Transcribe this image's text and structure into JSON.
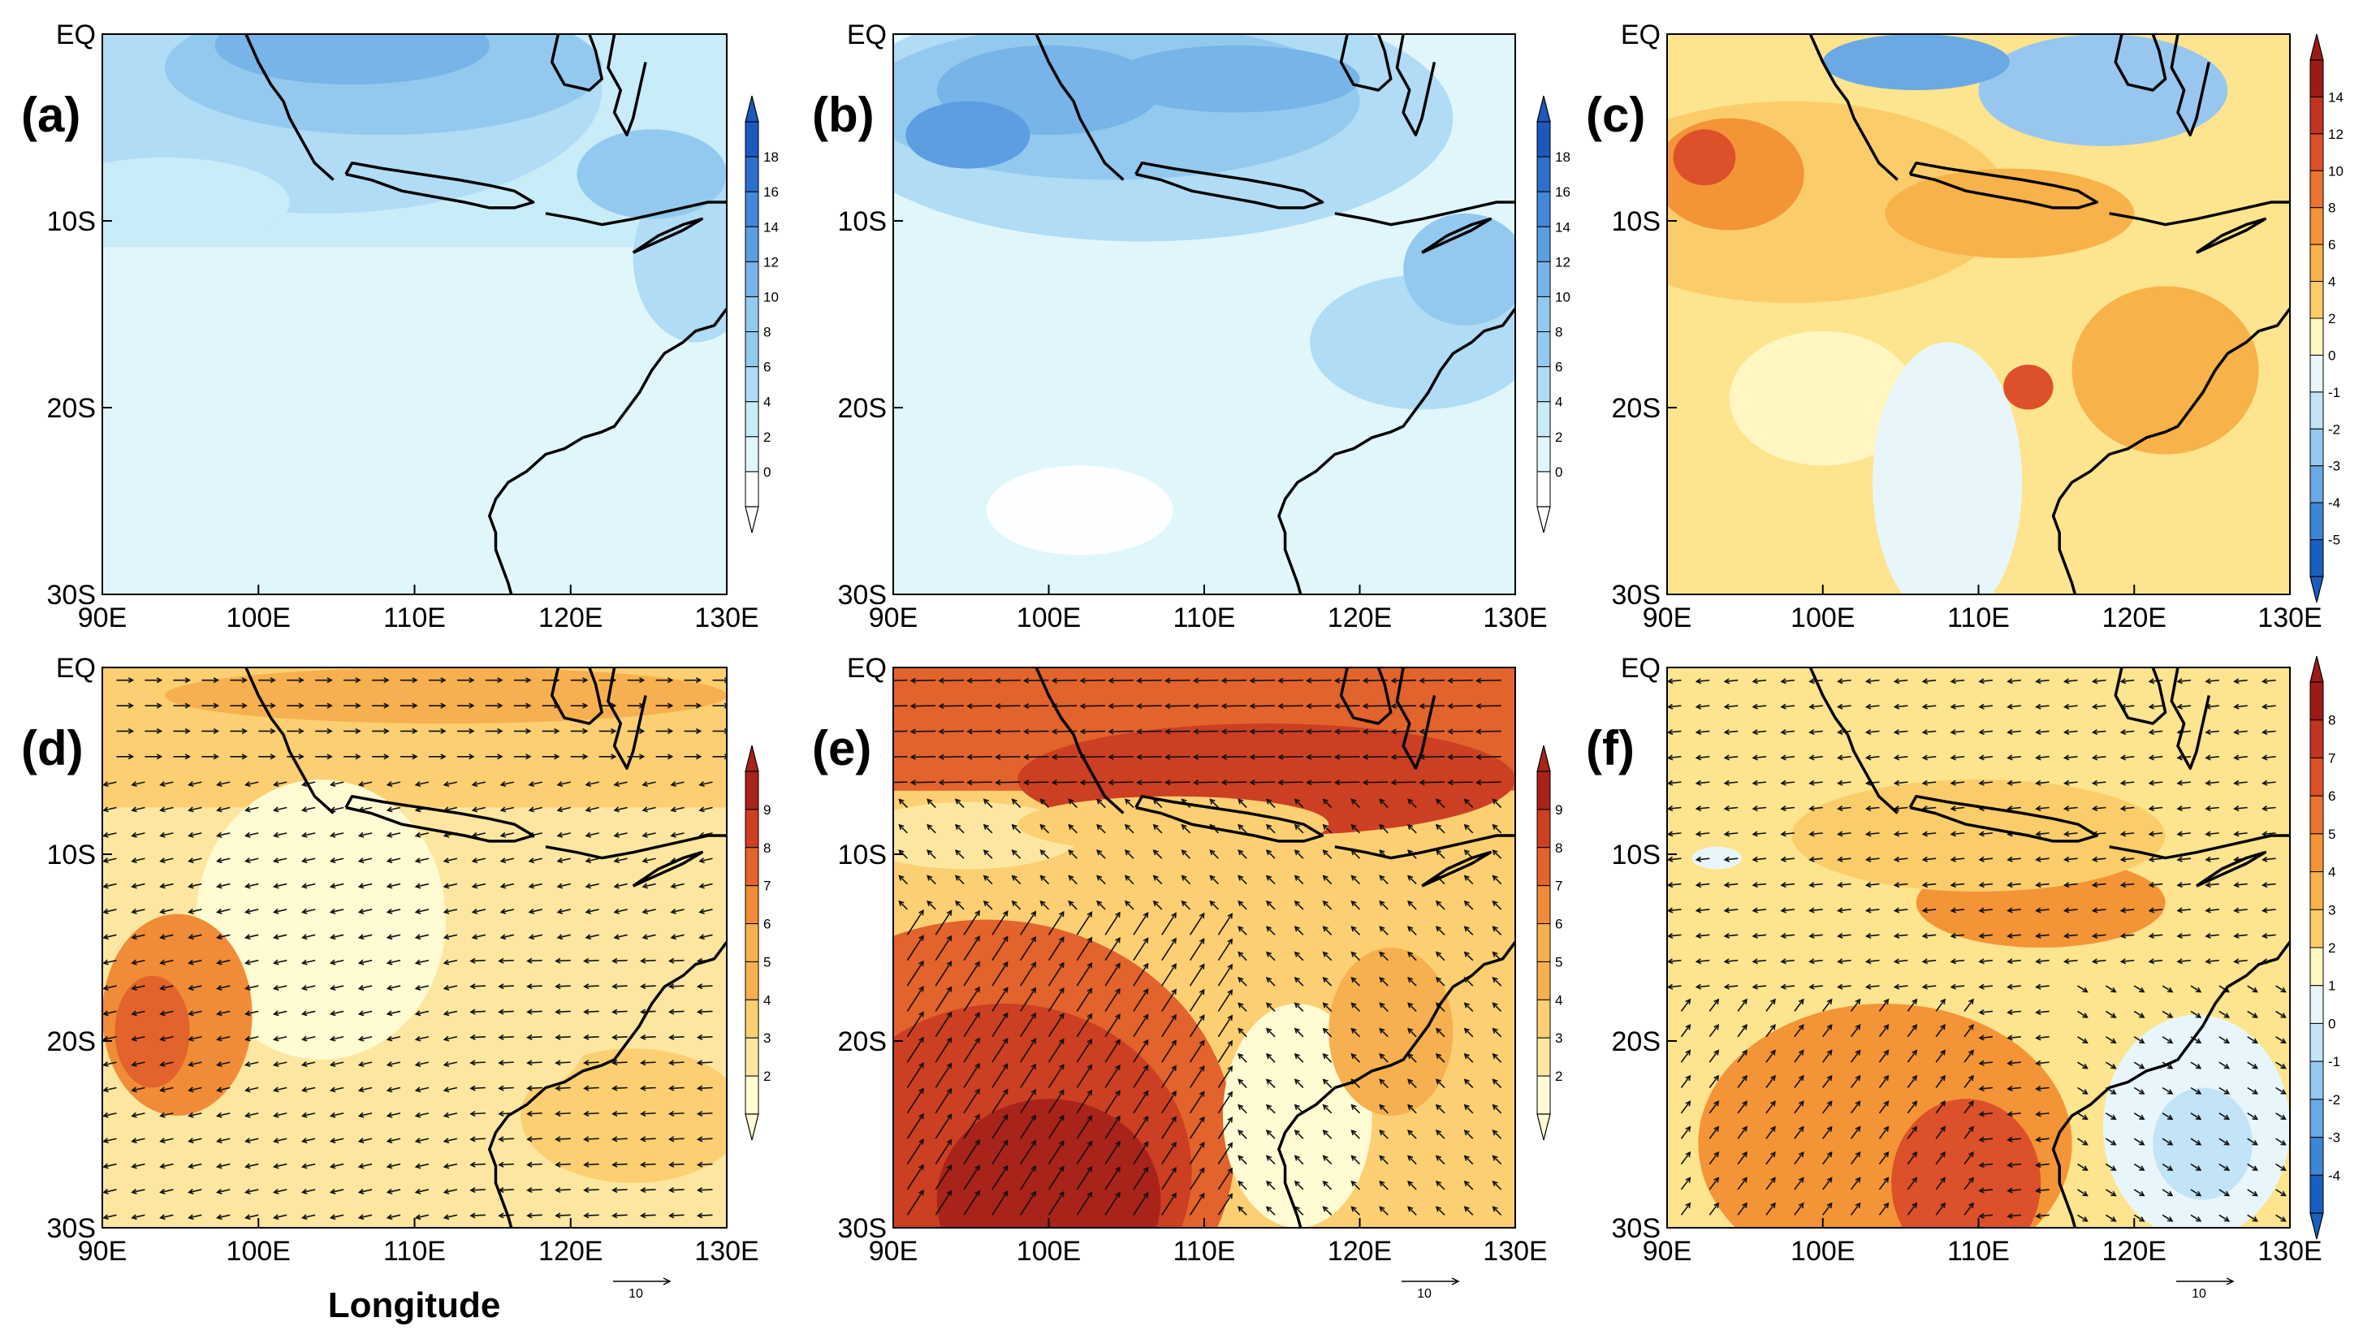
{
  "figure": {
    "x_axis_title": "Longitude",
    "lon_ticks": [
      "90E",
      "100E",
      "110E",
      "120E",
      "130E"
    ],
    "lat_ticks": [
      "EQ",
      "10S",
      "20S",
      "30S"
    ],
    "reference_vector_label": "10"
  },
  "colors": {
    "blue_scale": [
      "#ffffff",
      "#e0f6fb",
      "#c8ecf8",
      "#b0dcf5",
      "#94c9ef",
      "#77b4e8",
      "#5c9ee0",
      "#4587d8",
      "#2f6fcc",
      "#1e58bd"
    ],
    "diverging_scale": [
      "#1a5fbf",
      "#3f85d6",
      "#6aa9e4",
      "#97c7ef",
      "#c3e3f7",
      "#e8f6fc",
      "#fff6c2",
      "#fde48e",
      "#fbcd6a",
      "#f8b24a",
      "#f39437",
      "#ec7431",
      "#dc502a",
      "#c23322",
      "#9c1b17"
    ],
    "wind_scale": [
      "#fffbd3",
      "#fde7a0",
      "#fbcf72",
      "#f7b04f",
      "#f08c37",
      "#e2632c",
      "#cc3f22",
      "#a8231a"
    ]
  },
  "panels": [
    {
      "id": "a",
      "label": "(a)",
      "kind": "rain",
      "colorbar": {
        "labels": [
          "18",
          "16",
          "14",
          "12",
          "10",
          "8",
          "6",
          "4",
          "2",
          "0"
        ],
        "top_arrow": true,
        "bottom_arrow": true
      }
    },
    {
      "id": "b",
      "label": "(b)",
      "kind": "rain",
      "colorbar": {
        "labels": [
          "18",
          "16",
          "14",
          "12",
          "10",
          "8",
          "6",
          "4",
          "2",
          "0"
        ],
        "top_arrow": true,
        "bottom_arrow": true
      }
    },
    {
      "id": "c",
      "label": "(c)",
      "kind": "raindiff",
      "colorbar": {
        "labels": [
          "14",
          "12",
          "10",
          "8",
          "6",
          "4",
          "2",
          "0",
          "-1",
          "-2",
          "-3",
          "-4",
          "-5"
        ],
        "top_arrow": true,
        "bottom_arrow": true
      }
    },
    {
      "id": "d",
      "label": "(d)",
      "kind": "wind",
      "colorbar": {
        "labels": [
          "9",
          "8",
          "7",
          "6",
          "5",
          "4",
          "3",
          "2"
        ],
        "top_arrow": true,
        "bottom_arrow": true
      }
    },
    {
      "id": "e",
      "label": "(e)",
      "kind": "wind",
      "colorbar": {
        "labels": [
          "9",
          "8",
          "7",
          "6",
          "5",
          "4",
          "3",
          "2"
        ],
        "top_arrow": true,
        "bottom_arrow": true
      }
    },
    {
      "id": "f",
      "label": "(f)",
      "kind": "winddiff",
      "colorbar": {
        "labels": [
          "8",
          "7",
          "6",
          "5",
          "4",
          "3",
          "2",
          "1",
          "0",
          "-1",
          "-2",
          "-3",
          "-4"
        ],
        "top_arrow": true,
        "bottom_arrow": true
      }
    }
  ]
}
